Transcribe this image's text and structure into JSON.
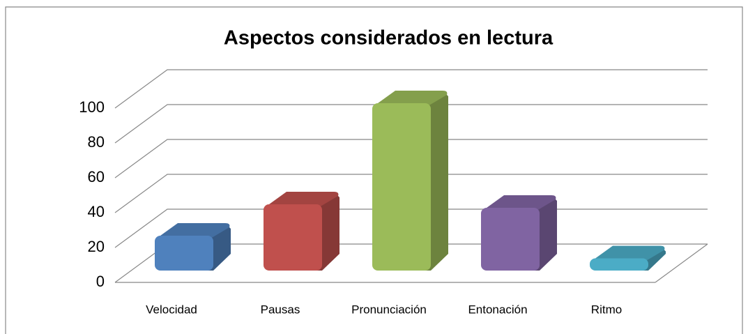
{
  "chart_data": {
    "type": "bar",
    "title": "Aspectos considerados en lectura",
    "categories": [
      "Velocidad",
      "Pausas",
      "Pronunciación",
      "Entonación",
      "Ritmo"
    ],
    "values": [
      20,
      38,
      96,
      36,
      7
    ],
    "colors": [
      "#4f81bd",
      "#c0504d",
      "#9bbb59",
      "#8064a2",
      "#4bacc6"
    ],
    "ylim": [
      0,
      100
    ],
    "yticks": [
      0,
      20,
      40,
      60,
      80,
      100
    ],
    "grid": true
  }
}
